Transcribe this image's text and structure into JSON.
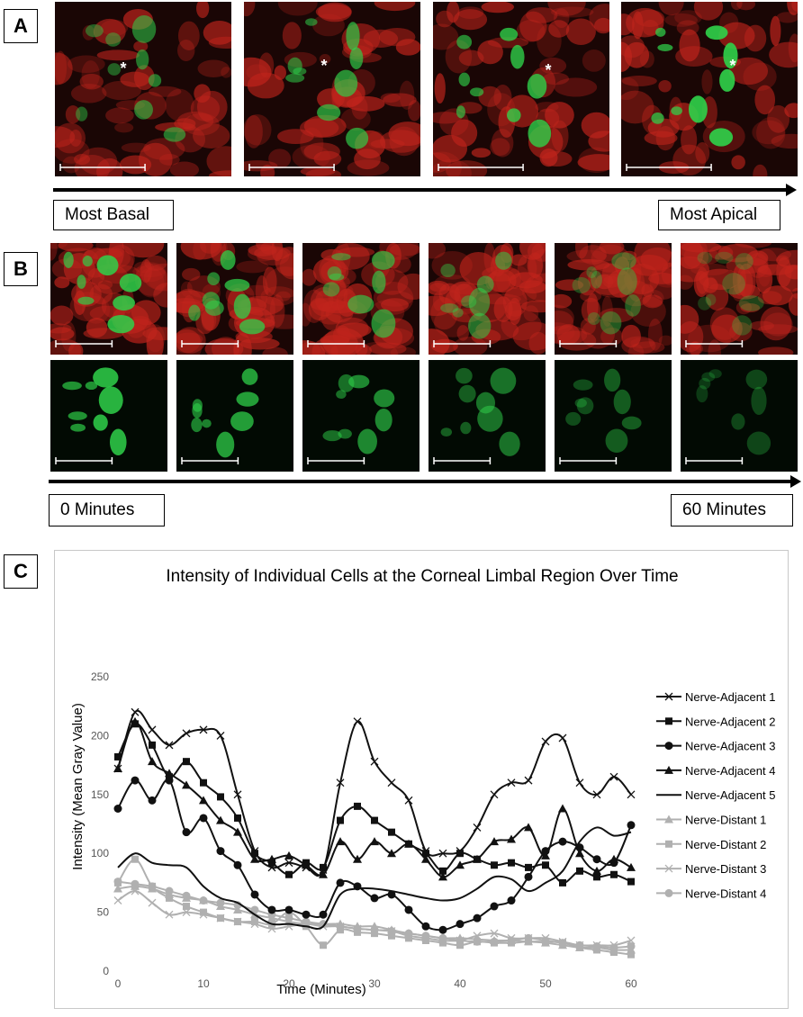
{
  "panels": {
    "a": {
      "label": "A",
      "left_caption": "Most Basal",
      "right_caption": "Most Apical",
      "marker": "*"
    },
    "b": {
      "label": "B",
      "left_caption": "0 Minutes",
      "right_caption": "60 Minutes"
    },
    "c": {
      "label": "C"
    }
  },
  "colors": {
    "red_stain": "#c0241c",
    "green_stain": "#2fd14a",
    "dark_bg": "#1a0605",
    "black_series": "#111111",
    "gray_series": "#b0b0b0"
  },
  "chart_data": {
    "type": "line",
    "title": "Intensity of Individual Cells at the Corneal Limbal Region Over Time",
    "xlabel": "Time (Minutes)",
    "ylabel": "Intensity (Mean Gray Value)",
    "xlim": [
      0,
      60
    ],
    "ylim": [
      0,
      250
    ],
    "xticks": [
      0,
      10,
      20,
      30,
      40,
      50,
      60
    ],
    "yticks": [
      0,
      50,
      100,
      150,
      200,
      250
    ],
    "legend_position": "right",
    "grid": false,
    "x": [
      0,
      2,
      4,
      6,
      8,
      10,
      12,
      14,
      16,
      18,
      20,
      22,
      24,
      26,
      28,
      30,
      32,
      34,
      36,
      38,
      40,
      42,
      44,
      46,
      48,
      50,
      52,
      54,
      56,
      58,
      60
    ],
    "series": [
      {
        "name": "Nerve-Adjacent 1",
        "marker": "x",
        "color": "#111111",
        "values": [
          172,
          220,
          205,
          192,
          202,
          205,
          200,
          150,
          102,
          88,
          92,
          88,
          86,
          160,
          212,
          178,
          160,
          145,
          102,
          100,
          102,
          122,
          150,
          160,
          162,
          195,
          198,
          160,
          150,
          165,
          150
        ]
      },
      {
        "name": "Nerve-Adjacent 2",
        "marker": "square",
        "color": "#111111",
        "values": [
          182,
          210,
          192,
          165,
          178,
          160,
          148,
          130,
          100,
          92,
          82,
          92,
          88,
          128,
          140,
          128,
          118,
          108,
          100,
          85,
          100,
          95,
          90,
          92,
          88,
          90,
          75,
          85,
          80,
          82,
          76
        ]
      },
      {
        "name": "Nerve-Adjacent 3",
        "marker": "circle",
        "color": "#111111",
        "values": [
          138,
          162,
          145,
          162,
          118,
          130,
          102,
          90,
          65,
          52,
          52,
          48,
          48,
          75,
          72,
          62,
          65,
          52,
          38,
          35,
          40,
          45,
          55,
          60,
          80,
          102,
          110,
          105,
          95,
          92,
          124
        ]
      },
      {
        "name": "Nerve-Adjacent 4",
        "marker": "triangle",
        "color": "#111111",
        "values": [
          172,
          212,
          178,
          168,
          158,
          145,
          128,
          118,
          95,
          95,
          98,
          90,
          82,
          110,
          95,
          110,
          100,
          108,
          95,
          80,
          90,
          95,
          110,
          112,
          122,
          98,
          138,
          100,
          85,
          95,
          88
        ]
      },
      {
        "name": "Nerve-Adjacent 5",
        "marker": "none",
        "color": "#111111",
        "values": [
          88,
          100,
          92,
          90,
          88,
          72,
          62,
          58,
          48,
          40,
          40,
          38,
          38,
          65,
          70,
          70,
          68,
          65,
          62,
          60,
          62,
          70,
          80,
          78,
          68,
          75,
          85,
          110,
          122,
          115,
          118
        ]
      },
      {
        "name": "Nerve-Distant 1",
        "marker": "triangle",
        "color": "#b0b0b0",
        "values": [
          70,
          72,
          70,
          65,
          62,
          60,
          55,
          52,
          48,
          45,
          42,
          40,
          40,
          40,
          38,
          38,
          35,
          32,
          30,
          28,
          28,
          27,
          26,
          26,
          25,
          24,
          22,
          20,
          20,
          18,
          18
        ]
      },
      {
        "name": "Nerve-Distant 2",
        "marker": "square",
        "color": "#b0b0b0",
        "values": [
          75,
          95,
          72,
          62,
          55,
          50,
          45,
          42,
          42,
          40,
          50,
          38,
          22,
          35,
          33,
          32,
          30,
          28,
          26,
          24,
          22,
          25,
          24,
          24,
          25,
          25,
          24,
          20,
          18,
          16,
          14
        ]
      },
      {
        "name": "Nerve-Distant 3",
        "marker": "x",
        "color": "#b0b0b0",
        "values": [
          60,
          68,
          58,
          48,
          50,
          48,
          45,
          42,
          40,
          36,
          38,
          40,
          38,
          38,
          36,
          35,
          34,
          30,
          28,
          26,
          26,
          30,
          32,
          28,
          28,
          28,
          25,
          22,
          22,
          22,
          26
        ]
      },
      {
        "name": "Nerve-Distant 4",
        "marker": "circle",
        "color": "#b0b0b0",
        "values": [
          76,
          74,
          72,
          68,
          64,
          60,
          58,
          56,
          52,
          48,
          45,
          42,
          40,
          38,
          36,
          35,
          34,
          32,
          30,
          28,
          26,
          25,
          25,
          26,
          28,
          26,
          24,
          22,
          21,
          20,
          21
        ]
      }
    ]
  }
}
